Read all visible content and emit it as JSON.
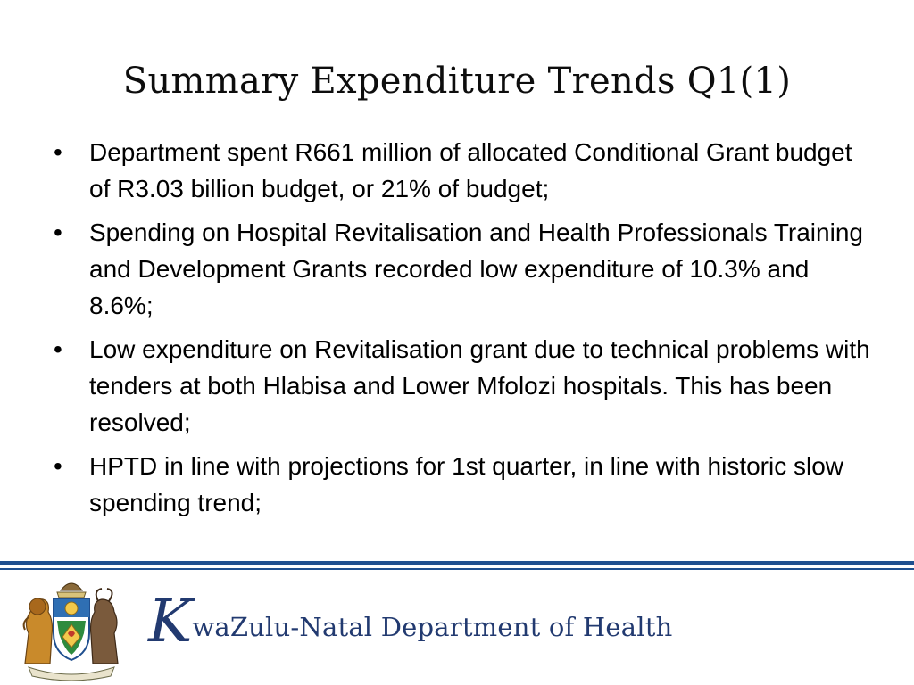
{
  "slide": {
    "title": "Summary Expenditure Trends Q1(1)",
    "bullet_symbol": "•",
    "bullets": [
      "Department spent R661 million of allocated Conditional Grant budget of R3.03 billion budget, or 21% of budget;",
      "Spending on Hospital Revitalisation and Health Professionals Training and Development Grants recorded low expenditure of 10.3% and 8.6%;",
      "Low expenditure on Revitalisation grant due to technical problems with tenders at both Hlabisa and Lower Mfolozi hospitals. This has been resolved;",
      "HPTD in line with projections for 1st quarter, in line with historic slow spending trend;"
    ]
  },
  "footer": {
    "brand_initial": "K",
    "brand_rest": "waZulu-Natal Department of Health",
    "logo_icon": "kzn-coat-of-arms-icon",
    "accent_color": "#1f4f8f",
    "brand_color": "#223a70"
  }
}
